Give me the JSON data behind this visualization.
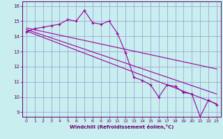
{
  "xlabel": "Windchill (Refroidissement éolien,°C)",
  "background_color": "#c8eef0",
  "line_color": "#990099",
  "grid_color": "#9999cc",
  "text_color": "#660066",
  "xlim": [
    -0.5,
    23.5
  ],
  "ylim": [
    8.7,
    16.3
  ],
  "yticks": [
    9,
    10,
    11,
    12,
    13,
    14,
    15,
    16
  ],
  "xticks": [
    0,
    1,
    2,
    3,
    4,
    5,
    6,
    7,
    8,
    9,
    10,
    11,
    12,
    13,
    14,
    15,
    16,
    17,
    18,
    19,
    20,
    21,
    22,
    23
  ],
  "main_x": [
    0,
    1,
    2,
    3,
    4,
    5,
    6,
    7,
    8,
    9,
    10,
    11,
    12,
    13,
    14,
    15,
    16,
    17,
    18,
    19,
    20,
    21,
    22,
    23
  ],
  "main_y": [
    14.3,
    14.5,
    14.6,
    14.7,
    14.8,
    15.1,
    15.0,
    15.7,
    14.9,
    14.8,
    15.0,
    14.2,
    12.9,
    11.3,
    11.1,
    10.8,
    10.0,
    10.8,
    10.7,
    10.3,
    10.2,
    8.7,
    9.8,
    9.5
  ],
  "trend1_x": [
    0,
    23
  ],
  "trend1_y": [
    14.35,
    9.55
  ],
  "trend2_x": [
    0,
    23
  ],
  "trend2_y": [
    14.45,
    10.2
  ],
  "trend3_x": [
    0,
    23
  ],
  "trend3_y": [
    14.55,
    11.85
  ]
}
